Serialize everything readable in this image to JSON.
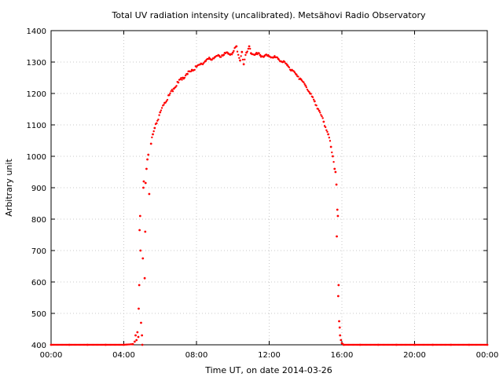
{
  "chart_data": {
    "type": "scatter",
    "title": "Total UV radiation intensity (uncalibrated). Metsähovi Radio Observatory",
    "xlabel": "Time UT, on date 2014-03-26",
    "ylabel": "Arbitrary unit",
    "x_unit": "hours UT",
    "xlim": [
      0,
      24
    ],
    "ylim": [
      400,
      1400
    ],
    "x_ticks": [
      {
        "value": 0,
        "label": "00:00"
      },
      {
        "value": 4,
        "label": "04:00"
      },
      {
        "value": 8,
        "label": "08:00"
      },
      {
        "value": 12,
        "label": "12:00"
      },
      {
        "value": 16,
        "label": "16:00"
      },
      {
        "value": 20,
        "label": "20:00"
      },
      {
        "value": 24,
        "label": "00:00"
      }
    ],
    "y_ticks": [
      400,
      500,
      600,
      700,
      800,
      900,
      1000,
      1100,
      1200,
      1300,
      1400
    ],
    "grid": true,
    "legend": "none",
    "series": [
      {
        "color": "#ff0000",
        "points": [
          [
            0.0,
            400
          ],
          [
            1.0,
            400
          ],
          [
            2.0,
            400
          ],
          [
            3.0,
            400
          ],
          [
            4.0,
            400
          ],
          [
            4.5,
            402
          ],
          [
            4.6,
            410
          ],
          [
            4.65,
            430
          ],
          [
            4.7,
            415
          ],
          [
            4.75,
            440
          ],
          [
            4.8,
            425
          ],
          [
            4.82,
            515
          ],
          [
            4.85,
            590
          ],
          [
            4.87,
            765
          ],
          [
            4.9,
            810
          ],
          [
            4.92,
            700
          ],
          [
            4.95,
            470
          ],
          [
            5.0,
            430
          ],
          [
            5.02,
            400
          ],
          [
            5.05,
            675
          ],
          [
            5.08,
            900
          ],
          [
            5.1,
            920
          ],
          [
            5.15,
            612
          ],
          [
            5.18,
            760
          ],
          [
            5.2,
            915
          ],
          [
            5.25,
            960
          ],
          [
            5.3,
            990
          ],
          [
            5.35,
            1005
          ],
          [
            5.4,
            880
          ],
          [
            5.5,
            1040
          ],
          [
            5.6,
            1070
          ],
          [
            5.7,
            1090
          ],
          [
            5.8,
            1105
          ],
          [
            6.0,
            1140
          ],
          [
            6.25,
            1170
          ],
          [
            6.5,
            1195
          ],
          [
            6.75,
            1215
          ],
          [
            7.0,
            1235
          ],
          [
            7.25,
            1250
          ],
          [
            7.5,
            1262
          ],
          [
            7.75,
            1275
          ],
          [
            8.0,
            1285
          ],
          [
            8.25,
            1295
          ],
          [
            8.5,
            1303
          ],
          [
            8.75,
            1310
          ],
          [
            9.0,
            1315
          ],
          [
            9.25,
            1320
          ],
          [
            9.5,
            1323
          ],
          [
            9.75,
            1327
          ],
          [
            10.0,
            1330
          ],
          [
            10.2,
            1350
          ],
          [
            10.4,
            1305
          ],
          [
            10.5,
            1332
          ],
          [
            10.6,
            1293
          ],
          [
            10.75,
            1330
          ],
          [
            10.9,
            1350
          ],
          [
            11.0,
            1328
          ],
          [
            11.25,
            1325
          ],
          [
            11.5,
            1322
          ],
          [
            11.75,
            1320
          ],
          [
            12.0,
            1318
          ],
          [
            12.25,
            1315
          ],
          [
            12.5,
            1310
          ],
          [
            12.75,
            1300
          ],
          [
            13.0,
            1290
          ],
          [
            13.25,
            1275
          ],
          [
            13.5,
            1260
          ],
          [
            13.75,
            1245
          ],
          [
            14.0,
            1225
          ],
          [
            14.25,
            1200
          ],
          [
            14.5,
            1175
          ],
          [
            14.75,
            1145
          ],
          [
            15.0,
            1110
          ],
          [
            15.25,
            1070
          ],
          [
            15.4,
            1030
          ],
          [
            15.5,
            1000
          ],
          [
            15.6,
            960
          ],
          [
            15.65,
            950
          ],
          [
            15.7,
            910
          ],
          [
            15.72,
            745
          ],
          [
            15.75,
            830
          ],
          [
            15.78,
            810
          ],
          [
            15.8,
            555
          ],
          [
            15.82,
            590
          ],
          [
            15.85,
            475
          ],
          [
            15.88,
            455
          ],
          [
            15.9,
            430
          ],
          [
            15.95,
            415
          ],
          [
            16.0,
            405
          ],
          [
            16.1,
            400
          ],
          [
            17.0,
            400
          ],
          [
            18.0,
            400
          ],
          [
            19.0,
            400
          ],
          [
            20.0,
            400
          ],
          [
            21.0,
            400
          ],
          [
            22.0,
            400
          ],
          [
            23.0,
            400
          ],
          [
            24.0,
            400
          ]
        ]
      }
    ]
  }
}
